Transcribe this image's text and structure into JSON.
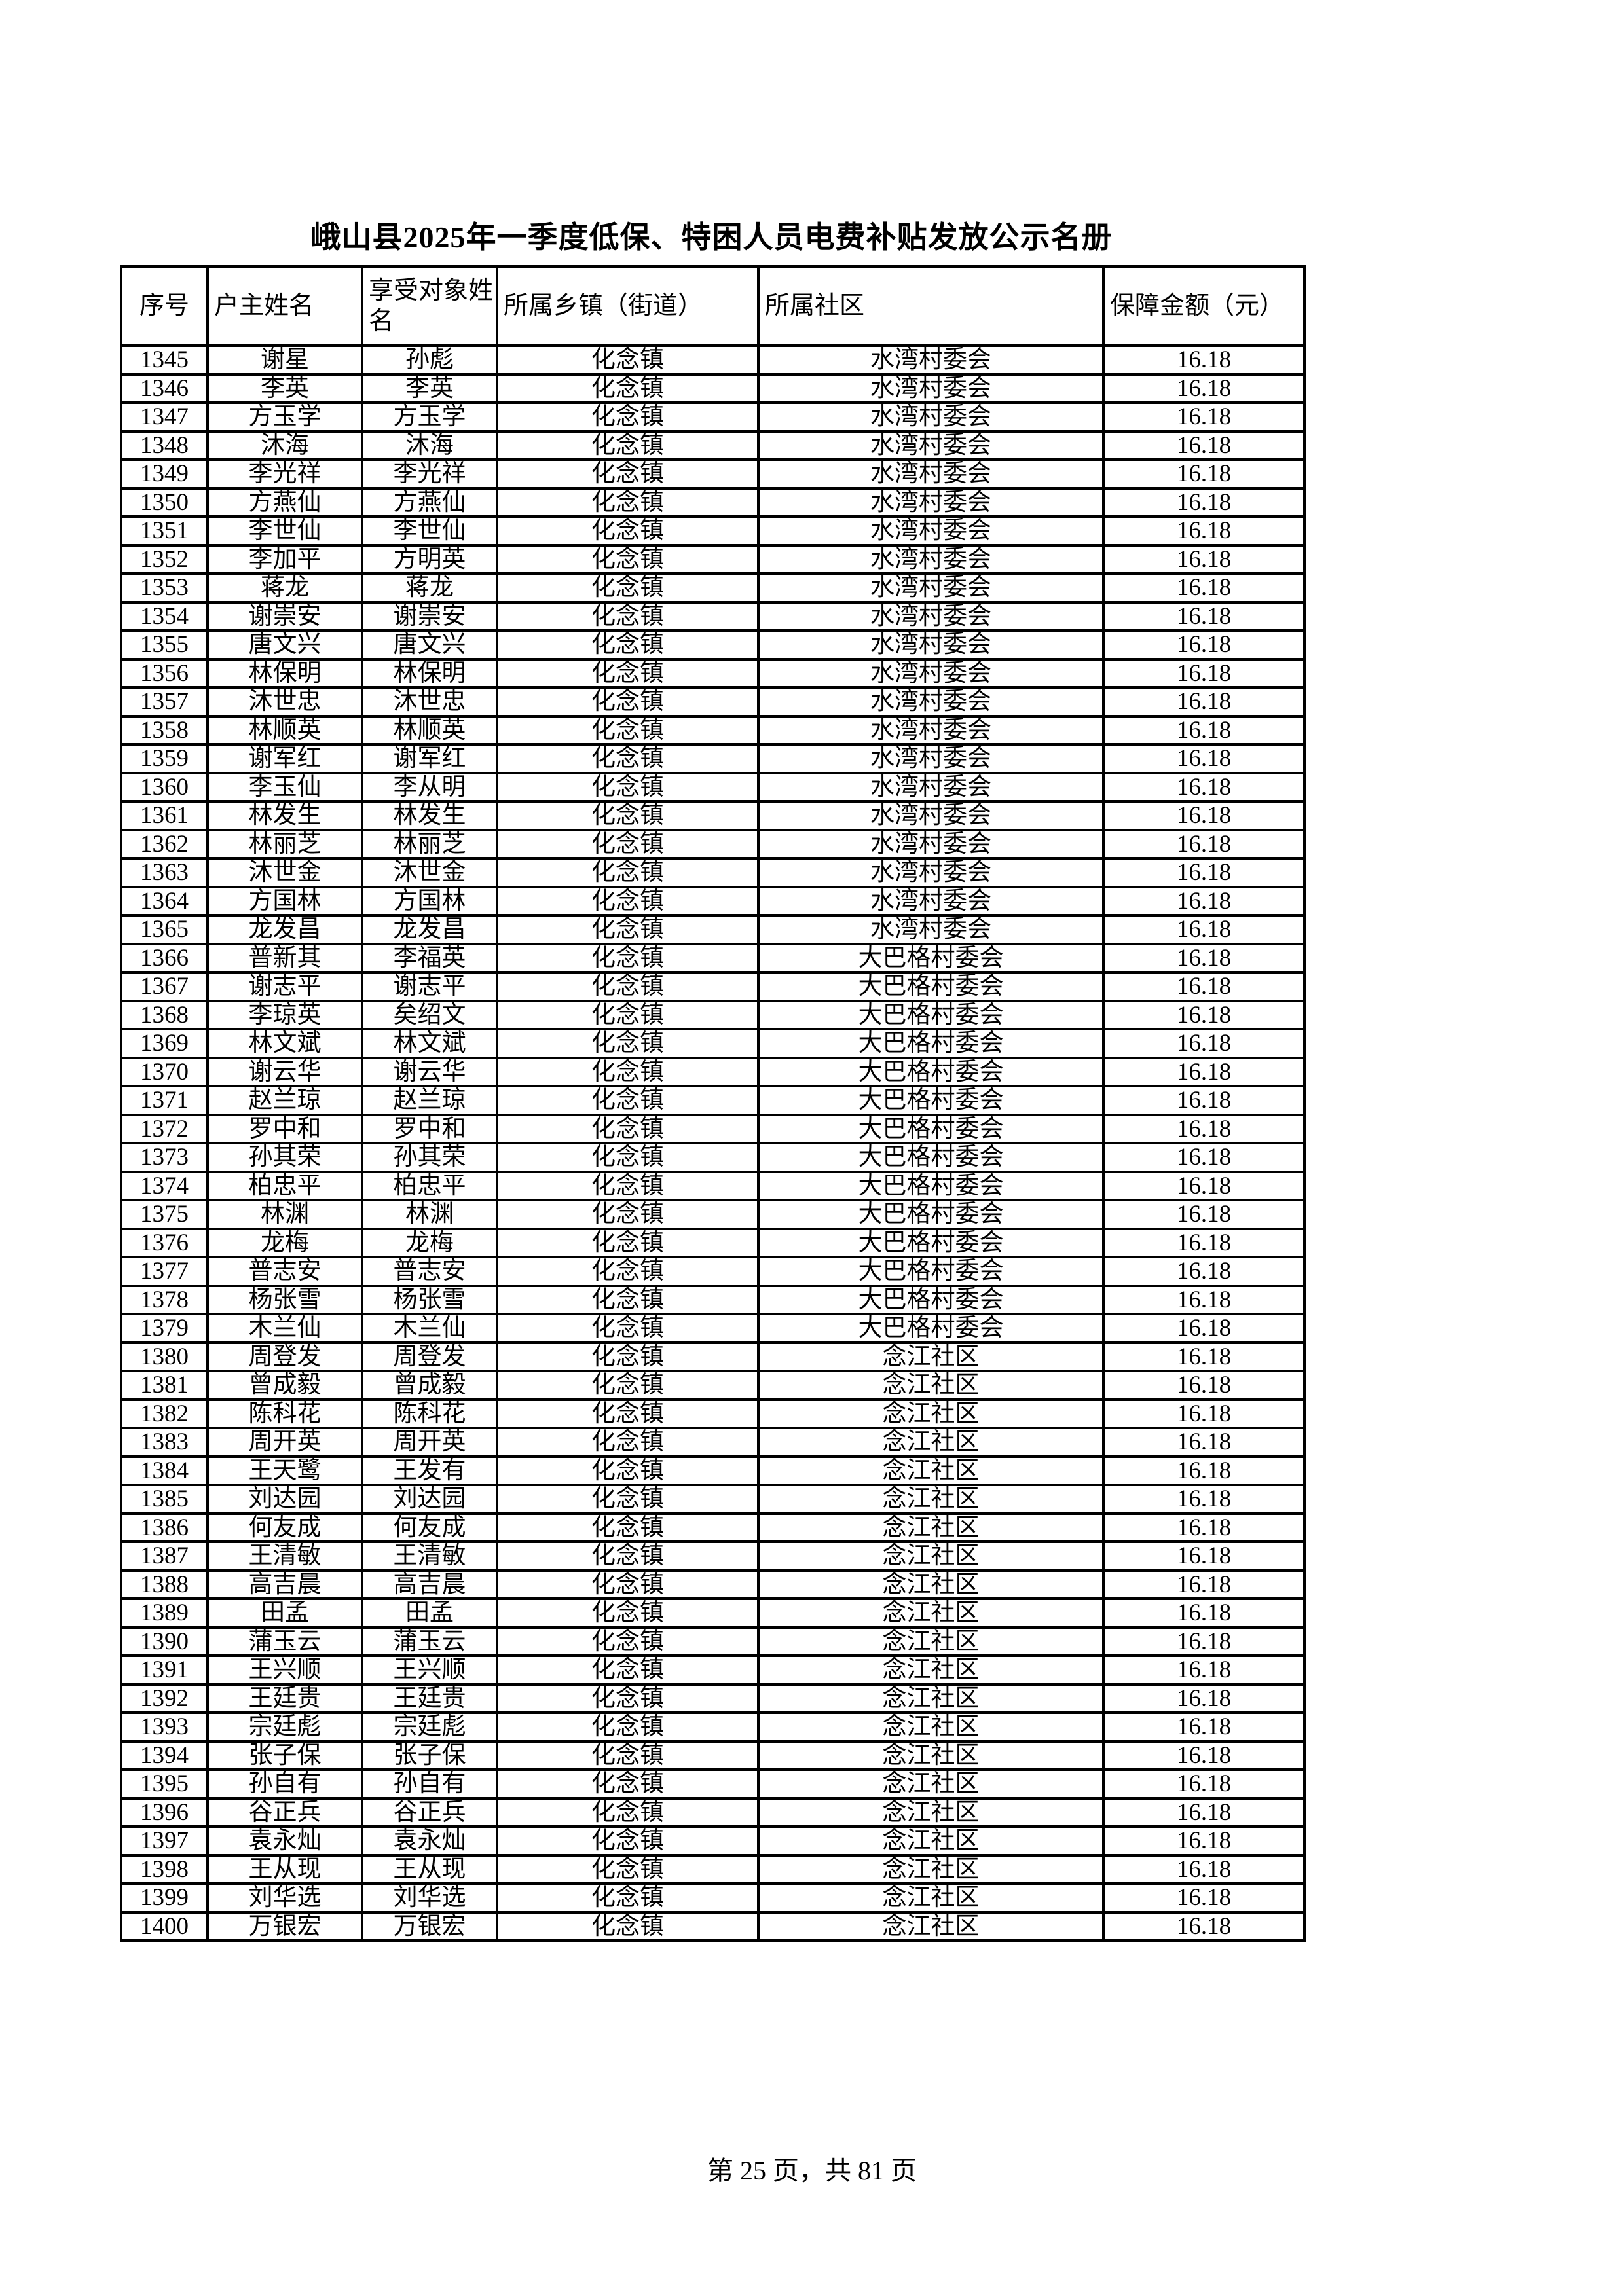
{
  "page": {
    "title": "峨山县2025年一季度低保、特困人员电费补贴发放公示名册",
    "footer": "第 25 页，共 81 页"
  },
  "table": {
    "headers": [
      "序号",
      "户主姓名",
      "享受对象姓名",
      "所属乡镇（街道）",
      "所属社区",
      "保障金额（元）"
    ],
    "rows": [
      [
        "1345",
        "谢星",
        "孙彪",
        "化念镇",
        "水湾村委会",
        "16.18"
      ],
      [
        "1346",
        "李英",
        "李英",
        "化念镇",
        "水湾村委会",
        "16.18"
      ],
      [
        "1347",
        "方玉学",
        "方玉学",
        "化念镇",
        "水湾村委会",
        "16.18"
      ],
      [
        "1348",
        "沐海",
        "沐海",
        "化念镇",
        "水湾村委会",
        "16.18"
      ],
      [
        "1349",
        "李光祥",
        "李光祥",
        "化念镇",
        "水湾村委会",
        "16.18"
      ],
      [
        "1350",
        "方燕仙",
        "方燕仙",
        "化念镇",
        "水湾村委会",
        "16.18"
      ],
      [
        "1351",
        "李世仙",
        "李世仙",
        "化念镇",
        "水湾村委会",
        "16.18"
      ],
      [
        "1352",
        "李加平",
        "方明英",
        "化念镇",
        "水湾村委会",
        "16.18"
      ],
      [
        "1353",
        "蒋龙",
        "蒋龙",
        "化念镇",
        "水湾村委会",
        "16.18"
      ],
      [
        "1354",
        "谢崇安",
        "谢崇安",
        "化念镇",
        "水湾村委会",
        "16.18"
      ],
      [
        "1355",
        "唐文兴",
        "唐文兴",
        "化念镇",
        "水湾村委会",
        "16.18"
      ],
      [
        "1356",
        "林保明",
        "林保明",
        "化念镇",
        "水湾村委会",
        "16.18"
      ],
      [
        "1357",
        "沐世忠",
        "沐世忠",
        "化念镇",
        "水湾村委会",
        "16.18"
      ],
      [
        "1358",
        "林顺英",
        "林顺英",
        "化念镇",
        "水湾村委会",
        "16.18"
      ],
      [
        "1359",
        "谢军红",
        "谢军红",
        "化念镇",
        "水湾村委会",
        "16.18"
      ],
      [
        "1360",
        "李玉仙",
        "李从明",
        "化念镇",
        "水湾村委会",
        "16.18"
      ],
      [
        "1361",
        "林发生",
        "林发生",
        "化念镇",
        "水湾村委会",
        "16.18"
      ],
      [
        "1362",
        "林丽芝",
        "林丽芝",
        "化念镇",
        "水湾村委会",
        "16.18"
      ],
      [
        "1363",
        "沐世金",
        "沐世金",
        "化念镇",
        "水湾村委会",
        "16.18"
      ],
      [
        "1364",
        "方国林",
        "方国林",
        "化念镇",
        "水湾村委会",
        "16.18"
      ],
      [
        "1365",
        "龙发昌",
        "龙发昌",
        "化念镇",
        "水湾村委会",
        "16.18"
      ],
      [
        "1366",
        "普新其",
        "李福英",
        "化念镇",
        "大巴格村委会",
        "16.18"
      ],
      [
        "1367",
        "谢志平",
        "谢志平",
        "化念镇",
        "大巴格村委会",
        "16.18"
      ],
      [
        "1368",
        "李琼英",
        "矣绍文",
        "化念镇",
        "大巴格村委会",
        "16.18"
      ],
      [
        "1369",
        "林文斌",
        "林文斌",
        "化念镇",
        "大巴格村委会",
        "16.18"
      ],
      [
        "1370",
        "谢云华",
        "谢云华",
        "化念镇",
        "大巴格村委会",
        "16.18"
      ],
      [
        "1371",
        "赵兰琼",
        "赵兰琼",
        "化念镇",
        "大巴格村委会",
        "16.18"
      ],
      [
        "1372",
        "罗中和",
        "罗中和",
        "化念镇",
        "大巴格村委会",
        "16.18"
      ],
      [
        "1373",
        "孙其荣",
        "孙其荣",
        "化念镇",
        "大巴格村委会",
        "16.18"
      ],
      [
        "1374",
        "柏忠平",
        "柏忠平",
        "化念镇",
        "大巴格村委会",
        "16.18"
      ],
      [
        "1375",
        "林渊",
        "林渊",
        "化念镇",
        "大巴格村委会",
        "16.18"
      ],
      [
        "1376",
        "龙梅",
        "龙梅",
        "化念镇",
        "大巴格村委会",
        "16.18"
      ],
      [
        "1377",
        "普志安",
        "普志安",
        "化念镇",
        "大巴格村委会",
        "16.18"
      ],
      [
        "1378",
        "杨张雪",
        "杨张雪",
        "化念镇",
        "大巴格村委会",
        "16.18"
      ],
      [
        "1379",
        "木兰仙",
        "木兰仙",
        "化念镇",
        "大巴格村委会",
        "16.18"
      ],
      [
        "1380",
        "周登发",
        "周登发",
        "化念镇",
        "念江社区",
        "16.18"
      ],
      [
        "1381",
        "曾成毅",
        "曾成毅",
        "化念镇",
        "念江社区",
        "16.18"
      ],
      [
        "1382",
        "陈科花",
        "陈科花",
        "化念镇",
        "念江社区",
        "16.18"
      ],
      [
        "1383",
        "周开英",
        "周开英",
        "化念镇",
        "念江社区",
        "16.18"
      ],
      [
        "1384",
        "王天鹭",
        "王发有",
        "化念镇",
        "念江社区",
        "16.18"
      ],
      [
        "1385",
        "刘达园",
        "刘达园",
        "化念镇",
        "念江社区",
        "16.18"
      ],
      [
        "1386",
        "何友成",
        "何友成",
        "化念镇",
        "念江社区",
        "16.18"
      ],
      [
        "1387",
        "王清敏",
        "王清敏",
        "化念镇",
        "念江社区",
        "16.18"
      ],
      [
        "1388",
        "高吉晨",
        "高吉晨",
        "化念镇",
        "念江社区",
        "16.18"
      ],
      [
        "1389",
        "田孟",
        "田孟",
        "化念镇",
        "念江社区",
        "16.18"
      ],
      [
        "1390",
        "蒲玉云",
        "蒲玉云",
        "化念镇",
        "念江社区",
        "16.18"
      ],
      [
        "1391",
        "王兴顺",
        "王兴顺",
        "化念镇",
        "念江社区",
        "16.18"
      ],
      [
        "1392",
        "王廷贵",
        "王廷贵",
        "化念镇",
        "念江社区",
        "16.18"
      ],
      [
        "1393",
        "宗廷彪",
        "宗廷彪",
        "化念镇",
        "念江社区",
        "16.18"
      ],
      [
        "1394",
        "张子保",
        "张子保",
        "化念镇",
        "念江社区",
        "16.18"
      ],
      [
        "1395",
        "孙自有",
        "孙自有",
        "化念镇",
        "念江社区",
        "16.18"
      ],
      [
        "1396",
        "谷正兵",
        "谷正兵",
        "化念镇",
        "念江社区",
        "16.18"
      ],
      [
        "1397",
        "袁永灿",
        "袁永灿",
        "化念镇",
        "念江社区",
        "16.18"
      ],
      [
        "1398",
        "王从现",
        "王从现",
        "化念镇",
        "念江社区",
        "16.18"
      ],
      [
        "1399",
        "刘华选",
        "刘华选",
        "化念镇",
        "念江社区",
        "16.18"
      ],
      [
        "1400",
        "万银宏",
        "万银宏",
        "化念镇",
        "念江社区",
        "16.18"
      ]
    ]
  }
}
